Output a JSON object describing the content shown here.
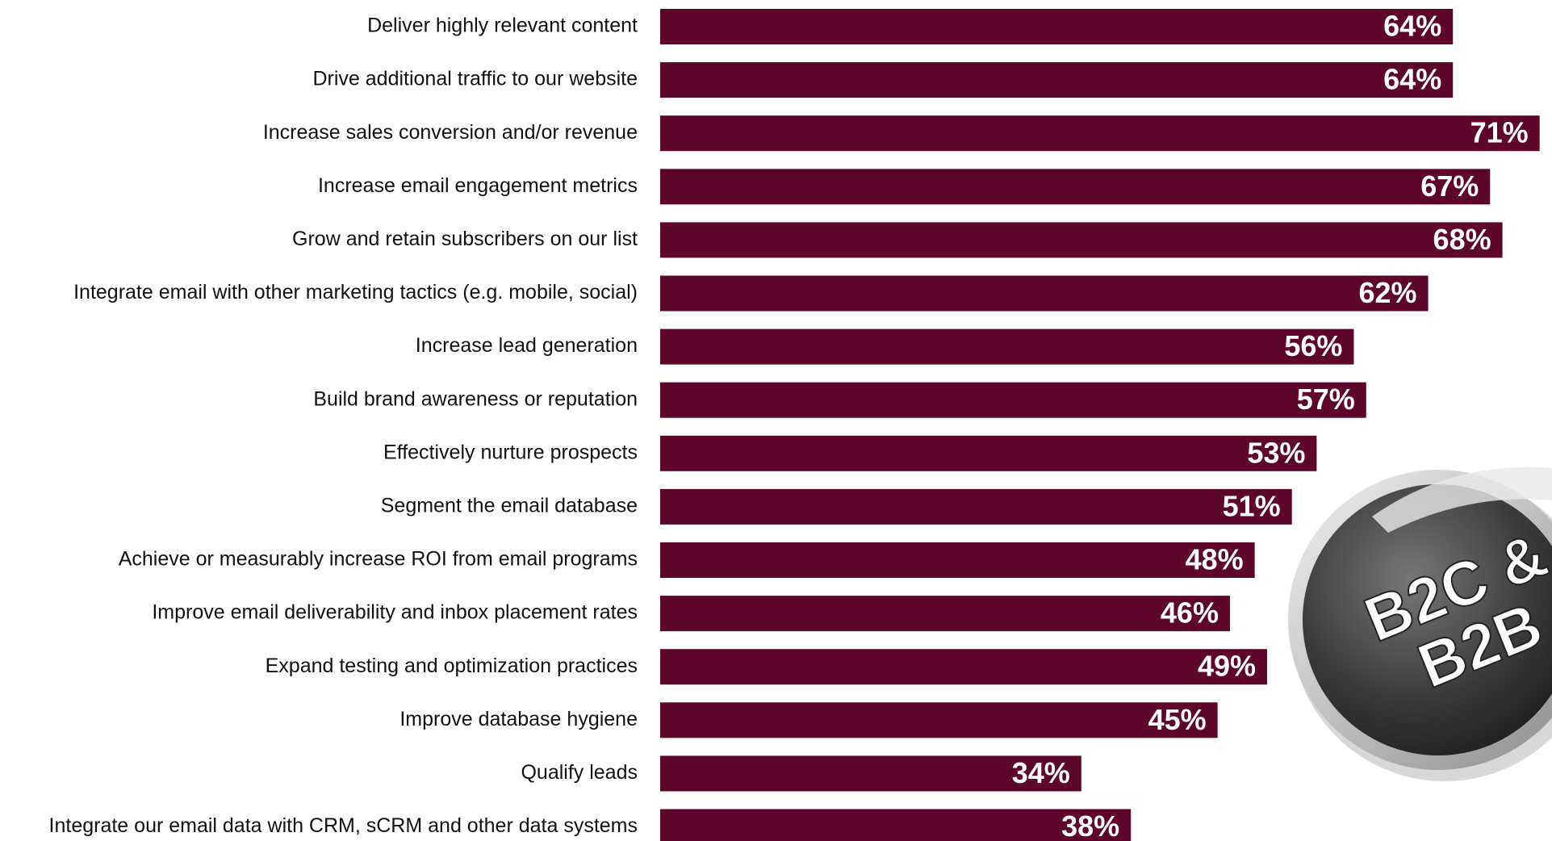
{
  "chart_data": {
    "type": "bar",
    "orientation": "horizontal",
    "categories": [
      "Deliver highly relevant content",
      "Drive additional traffic to our website",
      "Increase sales conversion and/or revenue",
      "Increase email engagement metrics",
      "Grow and retain subscribers on our list",
      "Integrate email with other marketing tactics (e.g. mobile, social)",
      "Increase lead generation",
      "Build brand awareness or reputation",
      "Effectively nurture prospects",
      "Segment the email database",
      "Achieve or measurably increase ROI from email programs",
      "Improve email deliverability and inbox placement rates",
      "Expand testing and optimization practices",
      "Improve database hygiene",
      "Qualify leads",
      "Integrate our email data with CRM, sCRM and other data systems"
    ],
    "values": [
      64,
      64,
      71,
      67,
      68,
      62,
      56,
      57,
      53,
      51,
      48,
      46,
      49,
      45,
      34,
      38
    ],
    "value_labels": [
      "64%",
      "64%",
      "71%",
      "67%",
      "68%",
      "62%",
      "56%",
      "57%",
      "53%",
      "51%",
      "48%",
      "46%",
      "49%",
      "45%",
      "34%",
      "38%"
    ],
    "color": "#5e0629",
    "xlim": [
      0,
      72
    ],
    "badge": [
      "B2C &",
      "B2B"
    ]
  }
}
